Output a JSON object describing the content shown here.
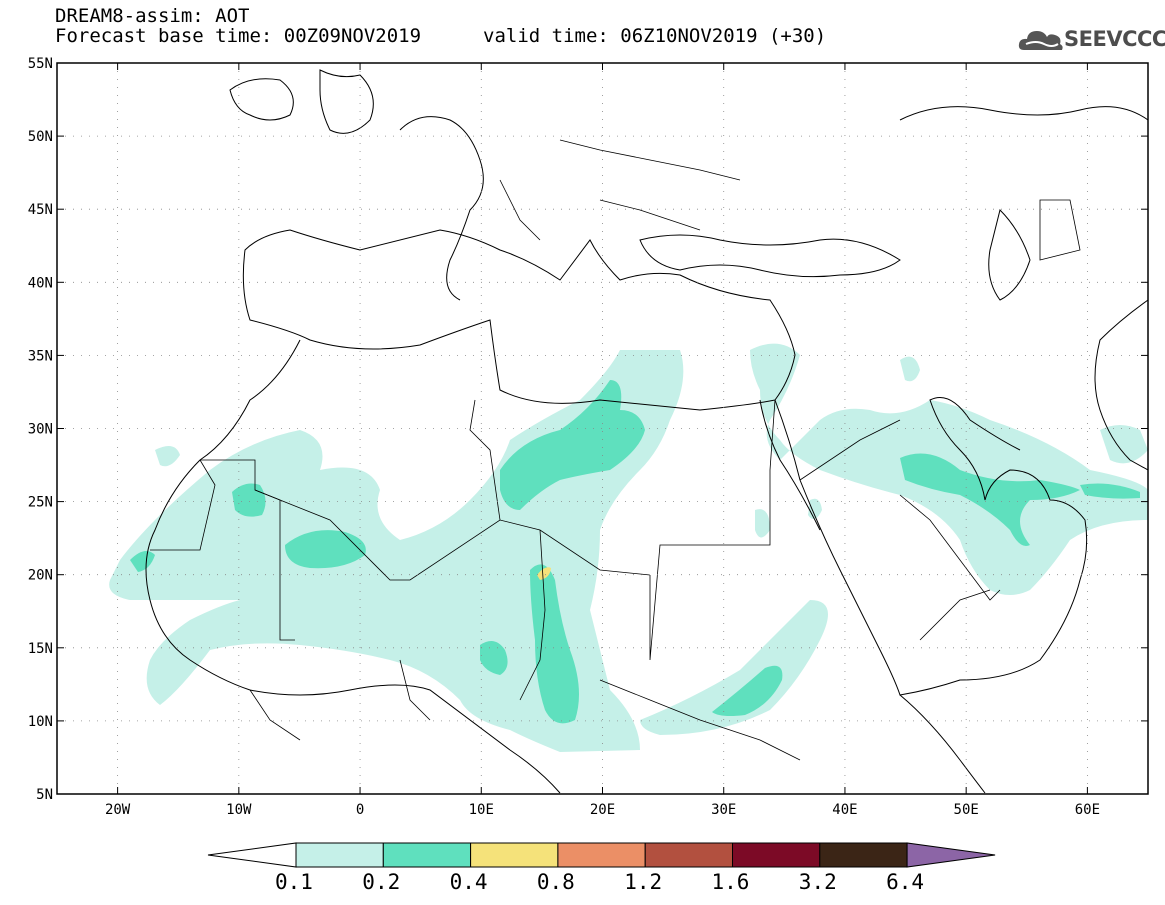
{
  "header": {
    "model_line": "DREAM8-assim: AOT",
    "base_time_line": "Forecast base time: 00Z09NOV2019",
    "valid_time_line": "valid time: 06Z10NOV2019 (+30)"
  },
  "logo": {
    "text": "SEEVCCC",
    "icon": "cloud-icon"
  },
  "map": {
    "lon_range": [
      -25,
      65
    ],
    "lat_range": [
      5,
      55
    ],
    "lat_ticks": [
      {
        "v": 55,
        "label": "55N"
      },
      {
        "v": 50,
        "label": "50N"
      },
      {
        "v": 45,
        "label": "45N"
      },
      {
        "v": 40,
        "label": "40N"
      },
      {
        "v": 35,
        "label": "35N"
      },
      {
        "v": 30,
        "label": "30N"
      },
      {
        "v": 25,
        "label": "25N"
      },
      {
        "v": 20,
        "label": "20N"
      },
      {
        "v": 15,
        "label": "15N"
      },
      {
        "v": 10,
        "label": "10N"
      },
      {
        "v": 5,
        "label": "5N"
      }
    ],
    "lon_ticks": [
      {
        "v": -20,
        "label": "20W"
      },
      {
        "v": -10,
        "label": "10W"
      },
      {
        "v": 0,
        "label": "0"
      },
      {
        "v": 10,
        "label": "10E"
      },
      {
        "v": 20,
        "label": "20E"
      },
      {
        "v": 30,
        "label": "30E"
      },
      {
        "v": 40,
        "label": "40E"
      },
      {
        "v": 50,
        "label": "50E"
      },
      {
        "v": 60,
        "label": "60E"
      }
    ]
  },
  "colorbar": {
    "labels": [
      "0.1",
      "0.2",
      "0.4",
      "0.8",
      "1.2",
      "1.6",
      "3.2",
      "6.4"
    ],
    "colors": [
      "#c5f0e8",
      "#5fe0be",
      "#f5e27a",
      "#eb8f66",
      "#b2503f",
      "#7c0a26",
      "#3b2516",
      "#8c65a6"
    ],
    "under_color": "#ffffff"
  }
}
